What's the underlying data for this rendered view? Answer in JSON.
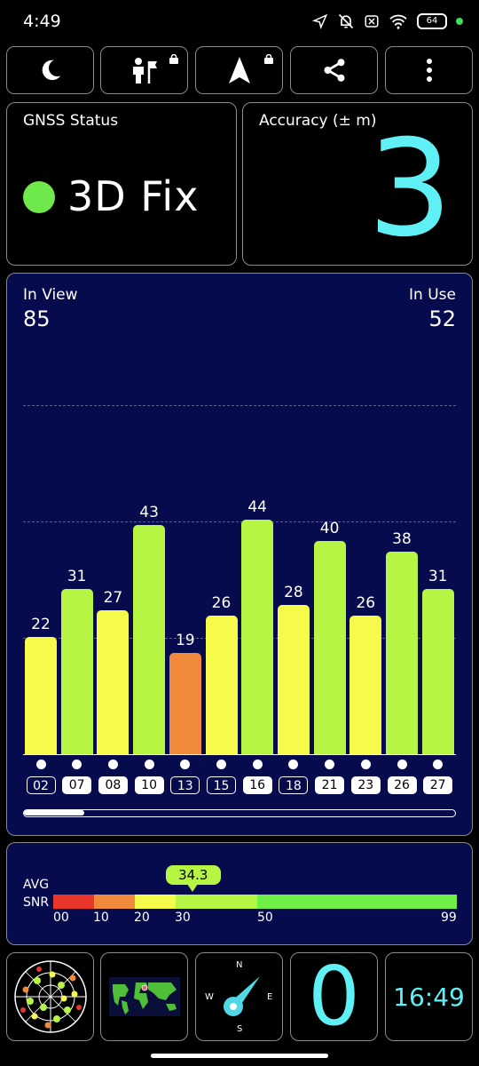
{
  "status_bar": {
    "time": "4:49",
    "battery": "64"
  },
  "toolbar": {
    "buttons": [
      {
        "icon": "moon-icon"
      },
      {
        "icon": "person-flag-icon",
        "locked": true
      },
      {
        "icon": "navigation-arrow-icon",
        "locked": true
      },
      {
        "icon": "share-icon"
      },
      {
        "icon": "more-vert-icon"
      }
    ]
  },
  "gnss_status": {
    "title": "GNSS Status",
    "value": "3D Fix",
    "indicator_color": "#6ee84a"
  },
  "accuracy": {
    "title": "Accuracy (± m)",
    "value": "3",
    "value_color": "#5ef0f5"
  },
  "satellites": {
    "in_view_label": "In View",
    "in_view": "85",
    "in_use_label": "In Use",
    "in_use": "52"
  },
  "chart_data": {
    "type": "bar",
    "categories": [
      "02",
      "07",
      "08",
      "10",
      "13",
      "15",
      "16",
      "18",
      "21",
      "23",
      "26",
      "27"
    ],
    "values": [
      22,
      31,
      27,
      43,
      19,
      26,
      44,
      28,
      40,
      26,
      38,
      31
    ],
    "used": [
      false,
      true,
      true,
      true,
      false,
      false,
      true,
      false,
      true,
      true,
      true,
      true
    ],
    "ylim": [
      0,
      60
    ],
    "colors": {
      "low": "#f0893a",
      "mid": "#f6fa4b",
      "high": "#b7f545"
    }
  },
  "snr": {
    "label_avg": "AVG",
    "label_snr": "SNR",
    "average": "34.3",
    "scale_ticks": [
      "00",
      "10",
      "20",
      "30",
      "50",
      "99"
    ],
    "segment_colors": [
      "#e8372a",
      "#f0893a",
      "#f6fa4b",
      "#b7f545",
      "#6ef046"
    ]
  },
  "bottom_bar": {
    "count_value": "0",
    "time_value": "16:49",
    "compass": {
      "n": "N",
      "e": "E",
      "s": "S",
      "w": "W"
    }
  }
}
